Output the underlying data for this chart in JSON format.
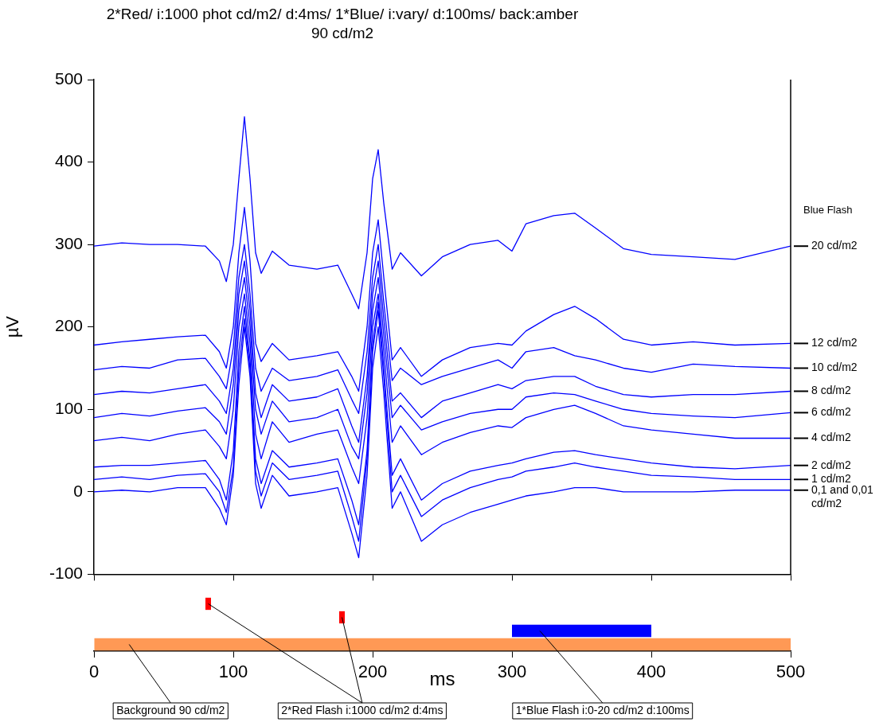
{
  "chart_data": [
    {
      "type": "line",
      "title": "2*Red/ i:1000 phot cd/m2/ d:4ms/ 1*Blue/ i:vary/ d:100ms/ back:amber 90 cd/m2",
      "ylabel": "µV",
      "legend_title": "Blue Flash",
      "x": [
        0,
        20,
        40,
        60,
        80,
        90,
        95,
        100,
        104,
        108,
        112,
        116,
        120,
        128,
        140,
        160,
        175,
        185,
        190,
        196,
        200,
        204,
        208,
        214,
        220,
        235,
        250,
        270,
        290,
        300,
        310,
        330,
        345,
        360,
        380,
        400,
        430,
        460,
        500
      ],
      "series": [
        {
          "name": "20 cd/m2",
          "color": "#0000ff",
          "values": [
            298,
            302,
            300,
            300,
            298,
            280,
            255,
            300,
            380,
            455,
            380,
            290,
            265,
            292,
            275,
            270,
            275,
            240,
            222,
            290,
            380,
            415,
            350,
            270,
            290,
            262,
            285,
            300,
            305,
            292,
            325,
            335,
            338,
            320,
            295,
            288,
            285,
            282,
            298
          ]
        },
        {
          "name": "12 cd/m2",
          "color": "#0000ff",
          "values": [
            178,
            182,
            185,
            188,
            190,
            170,
            150,
            200,
            290,
            345,
            280,
            180,
            158,
            180,
            160,
            165,
            170,
            140,
            122,
            200,
            290,
            330,
            260,
            160,
            175,
            140,
            160,
            175,
            180,
            178,
            195,
            215,
            225,
            210,
            185,
            178,
            182,
            178,
            180
          ]
        },
        {
          "name": "10 cd/m2",
          "color": "#0000ff",
          "values": [
            148,
            152,
            150,
            160,
            162,
            140,
            125,
            175,
            260,
            300,
            240,
            150,
            122,
            150,
            135,
            140,
            148,
            112,
            95,
            170,
            260,
            300,
            230,
            135,
            150,
            130,
            140,
            150,
            160,
            150,
            170,
            175,
            165,
            160,
            150,
            145,
            155,
            152,
            150
          ]
        },
        {
          "name": "8 cd/m2",
          "color": "#0000ff",
          "values": [
            118,
            122,
            120,
            125,
            130,
            110,
            95,
            150,
            240,
            280,
            220,
            120,
            90,
            130,
            110,
            115,
            125,
            80,
            60,
            140,
            240,
            280,
            210,
            110,
            120,
            90,
            110,
            120,
            130,
            125,
            135,
            140,
            140,
            128,
            118,
            115,
            118,
            118,
            122
          ]
        },
        {
          "name": "6 cd/m2",
          "color": "#0000ff",
          "values": [
            90,
            95,
            92,
            98,
            102,
            85,
            70,
            130,
            220,
            260,
            200,
            100,
            70,
            110,
            85,
            90,
            100,
            55,
            40,
            120,
            220,
            260,
            190,
            90,
            105,
            75,
            85,
            95,
            100,
            100,
            115,
            120,
            118,
            110,
            100,
            95,
            92,
            90,
            96
          ]
        },
        {
          "name": "4 cd/m2",
          "color": "#0000ff",
          "values": [
            62,
            66,
            62,
            70,
            75,
            55,
            40,
            100,
            200,
            240,
            180,
            70,
            40,
            85,
            60,
            70,
            75,
            30,
            10,
            90,
            200,
            240,
            170,
            60,
            80,
            45,
            60,
            72,
            80,
            78,
            90,
            100,
            105,
            95,
            80,
            75,
            70,
            65,
            65
          ]
        },
        {
          "name": "2 cd/m2",
          "color": "#0000ff",
          "values": [
            30,
            32,
            32,
            35,
            38,
            15,
            -10,
            50,
            170,
            225,
            160,
            40,
            10,
            50,
            30,
            35,
            40,
            -10,
            -40,
            50,
            180,
            230,
            150,
            20,
            40,
            -10,
            10,
            25,
            32,
            35,
            40,
            48,
            50,
            45,
            40,
            35,
            30,
            28,
            32
          ]
        },
        {
          "name": "1 cd/m2",
          "color": "#0000ff",
          "values": [
            15,
            18,
            15,
            20,
            22,
            0,
            -25,
            30,
            150,
            210,
            150,
            25,
            -5,
            35,
            15,
            20,
            25,
            -30,
            -60,
            40,
            170,
            220,
            140,
            0,
            20,
            -30,
            -10,
            5,
            15,
            18,
            25,
            30,
            35,
            30,
            25,
            20,
            18,
            15,
            15
          ]
        },
        {
          "name": "0,1 and 0,01 cd/m2",
          "color": "#0000ff",
          "values": [
            0,
            2,
            0,
            5,
            5,
            -20,
            -40,
            20,
            130,
            200,
            140,
            10,
            -20,
            20,
            -5,
            0,
            5,
            -50,
            -80,
            20,
            150,
            200,
            120,
            -20,
            0,
            -60,
            -40,
            -25,
            -15,
            -10,
            -5,
            0,
            5,
            5,
            0,
            0,
            0,
            2,
            2
          ]
        }
      ],
      "xlim": [
        0,
        500
      ],
      "xticks": [
        0,
        100,
        200,
        300,
        400,
        500
      ],
      "ylim": [
        -100,
        500
      ],
      "yticks": [
        -100,
        0,
        100,
        200,
        300,
        400,
        500
      ],
      "grid": false,
      "tick_labels": "y",
      "marker": "none",
      "line_style": "solid"
    },
    {
      "type": "bar",
      "orientation": "horizontal",
      "categories": [
        null,
        null,
        null,
        null
      ],
      "xlabel": "ms",
      "values": [
        4,
        4,
        100,
        500
      ],
      "base": [
        80,
        176,
        300,
        0
      ],
      "colors": [
        "#ff0000",
        "#ff0000",
        "#0000ff",
        "#ff9955"
      ],
      "xlim": [
        0,
        500
      ],
      "xticks": [
        0,
        100,
        200,
        300,
        400,
        500
      ],
      "grid": false,
      "tick_labels": "x",
      "annotations": [
        "Background 90 cd/m2",
        "2*Red Flash i:1000 cd/m2 d:4ms",
        "1*Blue Flash i:0-20 cd/m2 d:100ms"
      ]
    }
  ]
}
